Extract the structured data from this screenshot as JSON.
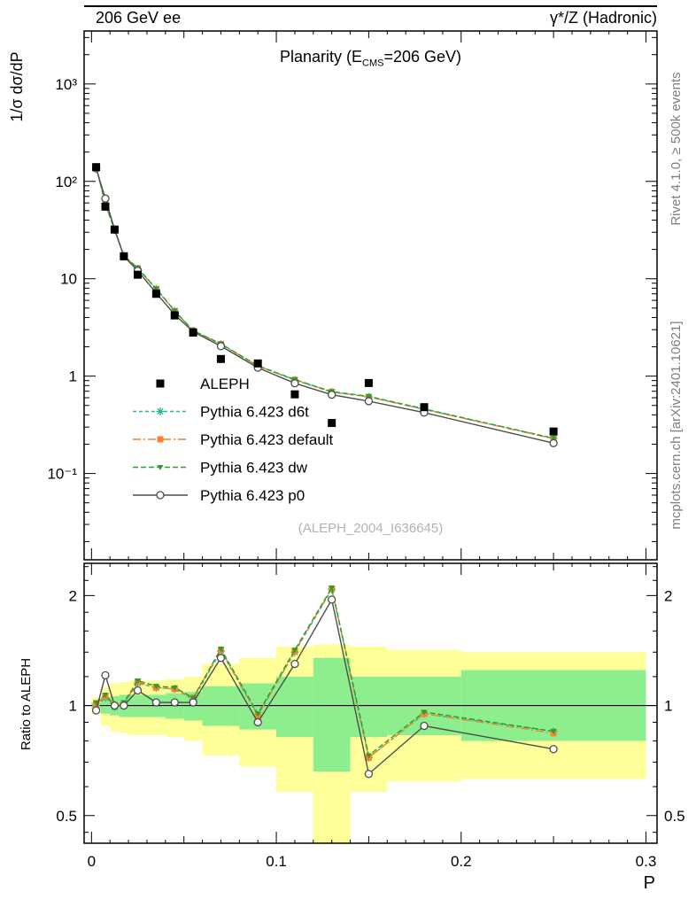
{
  "page": {
    "header_left": "206 GeV ee",
    "header_right": "γ*/Z (Hadronic)",
    "rivet_label": "Rivet 4.1.0, ≥ 500k events",
    "mcplots_label": "mcplots.cern.ch [arXiv:2401.10621]",
    "watermark": "(ALEPH_2004_I636645)",
    "xlabel": "P",
    "ylabel_main": "1/σ  dσ/dP",
    "ylabel_ratio": "Ratio to ALEPH",
    "title": {
      "prefix": "Planarity (E",
      "sub": "CMS",
      "suffix": "=206 GeV)"
    }
  },
  "chart_data": {
    "type": "line",
    "title": "Planarity (E_CMS=206 GeV)",
    "xlabel": "P",
    "ylabel": "1/σ dσ/dP",
    "ratio_ylabel": "Ratio to ALEPH",
    "legend_position": "middle-left of main panel",
    "grid": false,
    "x_range": [
      -0.004,
      0.306
    ],
    "x_ticks_major": [
      0,
      0.1,
      0.2,
      0.3
    ],
    "x_tick_labels": [
      "0",
      "0.1",
      "0.2",
      "0.3"
    ],
    "main_y_scale": "log",
    "main_y_log_range": [
      0.013,
      3500
    ],
    "main_y_ticks": [
      {
        "v": 1000,
        "label": "10³"
      },
      {
        "v": 100,
        "label": "10²"
      },
      {
        "v": 10,
        "label": "10"
      },
      {
        "v": 1,
        "label": "1"
      },
      {
        "v": 0.1,
        "label": "10⁻¹"
      }
    ],
    "ratio_y_scale": "log",
    "ratio_y_log_range": [
      0.42,
      2.45
    ],
    "ratio_y_ticks": [
      {
        "v": 2,
        "label": "2"
      },
      {
        "v": 1,
        "label": "1"
      },
      {
        "v": 0.5,
        "label": "0.5"
      }
    ],
    "bin_centers": [
      0.0025,
      0.0075,
      0.0125,
      0.0175,
      0.025,
      0.035,
      0.045,
      0.055,
      0.07,
      0.09,
      0.11,
      0.13,
      0.15,
      0.18,
      0.25
    ],
    "bin_edges": [
      0,
      0.005,
      0.01,
      0.015,
      0.02,
      0.03,
      0.04,
      0.05,
      0.06,
      0.08,
      0.1,
      0.12,
      0.14,
      0.16,
      0.2,
      0.3
    ],
    "reference": {
      "name": "ALEPH",
      "color": "#000000",
      "marker": "square-filled",
      "values": [
        140,
        55,
        32,
        17,
        11,
        7,
        4.2,
        2.8,
        1.5,
        1.35,
        0.65,
        0.33,
        0.85,
        0.48,
        0.27
      ]
    },
    "mc_series": [
      {
        "key": "d6t",
        "name": "Pythia 6.423 d6t",
        "color": "#26b79c",
        "dash": "4,3",
        "marker": "asterisk",
        "values": [
          140,
          57.8,
          31.7,
          17.2,
          12.7,
          7.84,
          4.66,
          2.91,
          2.12,
          1.27,
          0.91,
          0.686,
          0.612,
          0.456,
          0.23
        ],
        "ratio": [
          1.0,
          1.05,
          0.99,
          1.01,
          1.15,
          1.12,
          1.11,
          1.04,
          1.41,
          0.94,
          1.4,
          2.08,
          0.72,
          0.95,
          0.85
        ]
      },
      {
        "key": "default",
        "name": "Pythia 6.423 default",
        "color": "#ff7f2a",
        "dash": "9,3,2,3",
        "marker": "square-filled",
        "values": [
          141.4,
          58.3,
          32,
          17.2,
          12.8,
          7.84,
          4.66,
          2.94,
          2.13,
          1.27,
          0.917,
          0.69,
          0.612,
          0.456,
          0.227
        ],
        "ratio": [
          1.01,
          1.06,
          1.0,
          1.01,
          1.16,
          1.12,
          1.11,
          1.05,
          1.42,
          0.94,
          1.41,
          2.09,
          0.72,
          0.95,
          0.84
        ]
      },
      {
        "key": "dw",
        "name": "Pythia 6.423 dw",
        "color": "#2ca02c",
        "dash": "6,3",
        "marker": "triangle-down-filled",
        "values": [
          142.8,
          58.9,
          32,
          17.3,
          12.9,
          7.91,
          4.7,
          2.94,
          2.15,
          1.28,
          0.923,
          0.693,
          0.62,
          0.461,
          0.23
        ],
        "ratio": [
          1.02,
          1.07,
          1.0,
          1.02,
          1.17,
          1.13,
          1.12,
          1.05,
          1.43,
          0.95,
          1.42,
          2.1,
          0.73,
          0.96,
          0.85
        ]
      },
      {
        "key": "p0",
        "name": "Pythia 6.423 p0",
        "color": "#4d4d4d",
        "dash": "",
        "marker": "circle-open",
        "values": [
          135.8,
          66.6,
          32,
          17,
          12.1,
          7.14,
          4.28,
          2.86,
          2.03,
          1.22,
          0.845,
          0.644,
          0.553,
          0.422,
          0.205
        ],
        "ratio": [
          0.97,
          1.21,
          1.0,
          1.0,
          1.1,
          1.02,
          1.02,
          1.02,
          1.35,
          0.9,
          1.3,
          1.95,
          0.65,
          0.88,
          0.76
        ]
      }
    ],
    "uncertainty_bands": {
      "yellow_color": "#ffff99",
      "green_color": "#8cee8c",
      "yellow": [
        [
          0.95,
          1.05
        ],
        [
          0.88,
          1.12
        ],
        [
          0.85,
          1.15
        ],
        [
          0.84,
          1.16
        ],
        [
          0.83,
          1.17
        ],
        [
          0.83,
          1.17
        ],
        [
          0.82,
          1.18
        ],
        [
          0.8,
          1.2
        ],
        [
          0.73,
          1.3
        ],
        [
          0.68,
          1.35
        ],
        [
          0.58,
          1.45
        ],
        [
          0.37,
          1.47
        ],
        [
          0.58,
          1.45
        ],
        [
          0.62,
          1.42
        ],
        [
          0.63,
          1.4
        ]
      ],
      "green": [
        [
          0.98,
          1.02
        ],
        [
          0.95,
          1.05
        ],
        [
          0.94,
          1.06
        ],
        [
          0.93,
          1.07
        ],
        [
          0.93,
          1.07
        ],
        [
          0.93,
          1.07
        ],
        [
          0.92,
          1.08
        ],
        [
          0.91,
          1.09
        ],
        [
          0.88,
          1.13
        ],
        [
          0.86,
          1.15
        ],
        [
          0.82,
          1.2
        ],
        [
          0.66,
          1.35
        ],
        [
          0.82,
          1.2
        ],
        [
          0.83,
          1.2
        ],
        [
          0.8,
          1.25
        ]
      ]
    }
  }
}
